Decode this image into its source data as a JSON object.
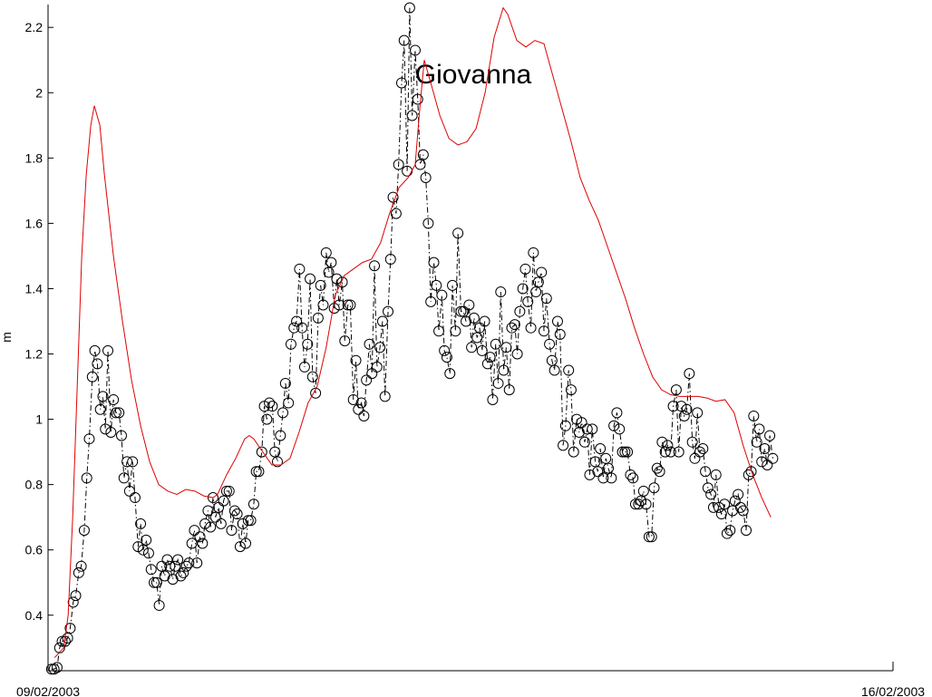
{
  "chart_data": {
    "type": "line",
    "annotation": "Giovanna",
    "ylabel": "m",
    "xlim": [
      0,
      168
    ],
    "xticks": [
      {
        "value": 0,
        "label": "09/02/2003"
      },
      {
        "value": 168,
        "label": "16/02/2003"
      }
    ],
    "ylim": [
      0.23,
      2.27
    ],
    "yticks": [
      {
        "value": 0.4,
        "label": "0.4"
      },
      {
        "value": 0.6,
        "label": "0.6"
      },
      {
        "value": 0.8,
        "label": "0.8"
      },
      1,
      {
        "value": 1.2,
        "label": "1.2"
      },
      {
        "value": 1.4,
        "label": "1.4"
      },
      {
        "value": 1.6,
        "label": "1.6"
      },
      {
        "value": 1.8,
        "label": "1.8"
      },
      2,
      {
        "value": 2.2,
        "label": "2.2"
      }
    ],
    "series": [
      {
        "color": "#000000",
        "marker": "circle",
        "dash": "dashdot",
        "x": [
          0.7,
          1.2,
          1.8,
          2.3,
          2.8,
          3.4,
          3.9,
          4.4,
          5.0,
          5.5,
          6.1,
          6.6,
          7.2,
          7.7,
          8.2,
          8.8,
          9.3,
          9.8,
          10.4,
          10.9,
          11.4,
          11.9,
          12.5,
          13.0,
          13.5,
          14.1,
          14.6,
          15.1,
          15.7,
          16.2,
          16.8,
          17.3,
          17.9,
          18.4,
          18.9,
          19.5,
          20.0,
          20.5,
          21.1,
          21.6,
          22.1,
          22.6,
          23.2,
          23.7,
          24.2,
          24.8,
          25.3,
          25.8,
          26.4,
          26.9,
          27.5,
          28.0,
          28.6,
          29.1,
          29.6,
          30.2,
          30.7,
          31.2,
          31.8,
          32.3,
          32.8,
          33.3,
          33.9,
          34.4,
          34.9,
          35.5,
          36.0,
          36.5,
          37.1,
          37.6,
          38.2,
          38.7,
          39.3,
          39.8,
          40.3,
          40.9,
          41.4,
          41.9,
          42.5,
          43.0,
          43.5,
          44.0,
          44.6,
          45.1,
          45.6,
          46.2,
          46.7,
          47.2,
          47.8,
          48.3,
          48.9,
          49.4,
          50.0,
          50.5,
          51.0,
          51.6,
          52.1,
          52.6,
          53.2,
          53.7,
          54.2,
          54.7,
          55.3,
          55.8,
          56.3,
          56.9,
          57.4,
          57.9,
          58.5,
          59.0,
          59.6,
          60.1,
          60.7,
          61.2,
          61.7,
          62.3,
          62.8,
          63.3,
          63.9,
          64.4,
          64.9,
          65.4,
          66.0,
          66.5,
          67.0,
          67.6,
          68.1,
          68.6,
          69.2,
          69.7,
          70.3,
          70.8,
          71.4,
          71.9,
          72.4,
          73.0,
          73.5,
          74.0,
          74.6,
          75.1,
          75.6,
          76.1,
          76.7,
          77.2,
          77.7,
          78.3,
          78.8,
          79.3,
          79.9,
          80.4,
          81.0,
          81.5,
          82.1,
          82.6,
          83.1,
          83.7,
          84.2,
          84.7,
          85.3,
          85.8,
          86.3,
          86.8,
          87.4,
          87.9,
          88.4,
          89.0,
          89.5,
          90.0,
          90.6,
          91.1,
          91.7,
          92.2,
          92.8,
          93.3,
          93.8,
          94.4,
          94.9,
          95.4,
          96.0,
          96.5,
          97.0,
          97.5,
          98.1,
          98.6,
          99.1,
          99.7,
          100.2,
          100.7,
          101.3,
          101.8,
          102.4,
          102.9,
          103.5,
          104.0,
          104.5,
          105.1,
          105.6,
          106.1,
          106.7,
          107.2,
          107.7,
          108.2,
          108.8,
          109.3,
          109.8,
          110.4,
          110.9,
          111.4,
          112.0,
          112.5,
          113.1,
          113.6,
          114.2,
          114.7,
          115.2,
          115.8,
          116.3,
          116.8,
          117.4,
          117.9,
          118.4,
          118.9,
          119.5,
          120.0,
          120.5,
          121.1,
          121.6,
          122.1,
          122.7,
          123.2,
          123.8,
          124.3,
          124.9,
          125.4,
          125.9,
          126.5,
          127.0,
          127.5,
          128.1,
          128.6,
          129.1,
          129.6,
          130.2,
          130.7,
          131.2,
          131.8,
          132.3,
          132.8,
          133.4,
          133.9,
          134.5,
          135.0,
          135.6,
          136.1,
          136.6,
          137.2,
          137.7,
          138.2,
          138.8,
          139.3,
          139.8,
          140.3,
          140.9,
          141.4,
          141.9,
          142.5,
          143.0,
          143.5,
          144.1
        ],
        "values": [
          0.235,
          0.235,
          0.24,
          0.3,
          0.32,
          0.32,
          0.33,
          0.36,
          0.44,
          0.46,
          0.53,
          0.55,
          0.66,
          0.82,
          0.94,
          1.13,
          1.21,
          1.17,
          1.03,
          1.07,
          0.97,
          1.21,
          0.96,
          1.06,
          1.02,
          1.02,
          0.95,
          0.82,
          0.87,
          0.78,
          0.87,
          0.76,
          0.61,
          0.68,
          0.6,
          0.63,
          0.59,
          0.54,
          0.5,
          0.5,
          0.43,
          0.55,
          0.52,
          0.57,
          0.55,
          0.51,
          0.55,
          0.57,
          0.52,
          0.53,
          0.55,
          0.56,
          0.62,
          0.66,
          0.56,
          0.64,
          0.62,
          0.68,
          0.72,
          0.67,
          0.76,
          0.7,
          0.73,
          0.68,
          0.75,
          0.78,
          0.78,
          0.66,
          0.72,
          0.71,
          0.61,
          0.68,
          0.62,
          0.69,
          0.69,
          0.74,
          0.84,
          0.84,
          0.9,
          1.04,
          1.0,
          1.05,
          1.04,
          0.9,
          0.87,
          0.95,
          1.02,
          1.11,
          1.05,
          1.23,
          1.28,
          1.3,
          1.46,
          1.28,
          1.16,
          1.23,
          1.43,
          1.13,
          1.08,
          1.31,
          1.41,
          1.35,
          1.51,
          1.45,
          1.48,
          1.34,
          1.43,
          1.35,
          1.42,
          1.24,
          1.35,
          1.35,
          1.06,
          1.18,
          1.03,
          1.05,
          1.01,
          1.12,
          1.23,
          1.14,
          1.47,
          1.16,
          1.22,
          1.3,
          1.07,
          1.33,
          1.49,
          1.68,
          1.63,
          1.78,
          2.03,
          2.16,
          1.76,
          2.26,
          1.93,
          2.13,
          1.98,
          1.78,
          1.81,
          1.74,
          1.6,
          1.36,
          1.48,
          1.41,
          1.27,
          1.38,
          1.21,
          1.19,
          1.14,
          1.41,
          1.27,
          1.57,
          1.33,
          1.33,
          1.3,
          1.35,
          1.22,
          1.31,
          1.25,
          1.28,
          1.21,
          1.3,
          1.17,
          1.19,
          1.06,
          1.23,
          1.11,
          1.39,
          1.15,
          1.22,
          1.09,
          1.28,
          1.29,
          1.2,
          1.33,
          1.4,
          1.46,
          1.36,
          1.28,
          1.51,
          1.39,
          1.42,
          1.45,
          1.27,
          1.37,
          1.23,
          1.18,
          1.15,
          1.3,
          1.26,
          0.92,
          0.98,
          1.15,
          1.09,
          0.9,
          1.0,
          0.96,
          0.99,
          0.93,
          0.97,
          0.83,
          0.97,
          0.87,
          0.84,
          0.91,
          0.82,
          0.88,
          0.85,
          0.82,
          0.98,
          1.02,
          0.97,
          0.9,
          0.9,
          0.9,
          0.83,
          0.82,
          0.74,
          0.74,
          0.75,
          0.78,
          0.74,
          0.64,
          0.64,
          0.79,
          0.85,
          0.84,
          0.93,
          0.9,
          0.92,
          0.9,
          1.04,
          1.09,
          0.9,
          1.04,
          1.01,
          1.03,
          1.14,
          0.93,
          0.88,
          1.02,
          0.9,
          0.91,
          0.84,
          0.79,
          0.77,
          0.73,
          0.83,
          0.73,
          0.71,
          0.74,
          0.65,
          0.66,
          0.72,
          0.75,
          0.77,
          0.73,
          0.72,
          0.66,
          0.83,
          0.84,
          1.01,
          0.93,
          0.97,
          0.87,
          0.91,
          0.86,
          0.95,
          0.88
        ]
      },
      {
        "color": "#e00000",
        "marker": "none",
        "dash": "solid",
        "x": [
          1.3,
          3.1,
          4.0,
          4.9,
          5.8,
          6.7,
          7.6,
          8.5,
          9.2,
          10.3,
          11.2,
          13.0,
          14.8,
          16.6,
          18.4,
          20.2,
          22.0,
          23.8,
          25.6,
          27.4,
          29.2,
          31.0,
          32.8,
          33.7,
          35.5,
          37.3,
          39.1,
          40.0,
          40.9,
          42.7,
          44.5,
          46.3,
          48.1,
          49.9,
          51.7,
          53.5,
          55.3,
          57.1,
          58.9,
          60.7,
          62.5,
          64.3,
          66.1,
          67.9,
          69.8,
          71.6,
          73.0,
          73.9,
          74.8,
          76.1,
          77.9,
          79.7,
          81.5,
          83.3,
          85.1,
          86.9,
          88.7,
          90.5,
          91.4,
          93.2,
          95.0,
          96.8,
          98.6,
          100.4,
          102.2,
          104.0,
          105.8,
          107.6,
          109.4,
          111.2,
          113.0,
          114.8,
          116.6,
          118.4,
          120.2,
          122.0,
          123.8,
          125.6,
          127.4,
          129.2,
          131.0,
          132.8,
          134.6,
          136.4,
          138.2,
          140.1,
          141.9,
          143.7
        ],
        "values": [
          0.27,
          0.3,
          0.4,
          0.7,
          1.1,
          1.5,
          1.75,
          1.9,
          1.96,
          1.9,
          1.75,
          1.5,
          1.3,
          1.12,
          0.98,
          0.87,
          0.8,
          0.78,
          0.77,
          0.785,
          0.78,
          0.765,
          0.76,
          0.77,
          0.83,
          0.88,
          0.94,
          0.95,
          0.94,
          0.9,
          0.86,
          0.86,
          0.88,
          0.96,
          1.05,
          1.1,
          1.22,
          1.38,
          1.44,
          1.46,
          1.48,
          1.49,
          1.54,
          1.63,
          1.71,
          1.74,
          1.78,
          1.95,
          2.1,
          2.03,
          1.93,
          1.86,
          1.84,
          1.85,
          1.89,
          2.0,
          2.17,
          2.26,
          2.24,
          2.16,
          2.14,
          2.16,
          2.15,
          2.05,
          1.95,
          1.85,
          1.74,
          1.67,
          1.61,
          1.53,
          1.45,
          1.37,
          1.28,
          1.2,
          1.13,
          1.09,
          1.075,
          1.07,
          1.07,
          1.07,
          1.065,
          1.055,
          1.06,
          1.02,
          0.92,
          0.83,
          0.76,
          0.7
        ]
      }
    ]
  }
}
